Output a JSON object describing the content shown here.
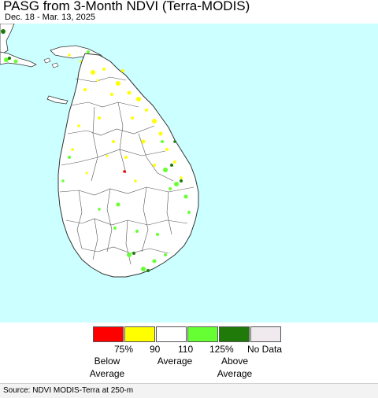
{
  "header": {
    "title": "PASG from 3-Month NDVI (Terra-MODIS)",
    "date_range": "Dec. 18 - Mar. 13, 2025"
  },
  "map": {
    "colors": {
      "water": "#ccffff",
      "land": "#ffffff",
      "border": "#333333",
      "yellow": "#ffff00",
      "light_green": "#66ff33",
      "dark_green": "#1f7a0a",
      "red": "#ff0000"
    }
  },
  "legend": {
    "swatches": [
      {
        "name": "below-75",
        "color": "#ff0000"
      },
      {
        "name": "75-90",
        "color": "#ffff00"
      },
      {
        "name": "90-110",
        "color": "#ffffff"
      },
      {
        "name": "110-125",
        "color": "#66ff33"
      },
      {
        "name": "above-125",
        "color": "#1f7a0a"
      },
      {
        "name": "no-data",
        "color": "#f0eaee"
      }
    ],
    "ticks": [
      "75%",
      "90",
      "110",
      "125%",
      "No Data"
    ],
    "words": {
      "below_1": "Below",
      "below_2": "Average",
      "average": "Average",
      "above_1": "Above",
      "above_2": "Average"
    }
  },
  "footer": {
    "source": "Source: NDVI MODIS-Terra at 250-m"
  }
}
